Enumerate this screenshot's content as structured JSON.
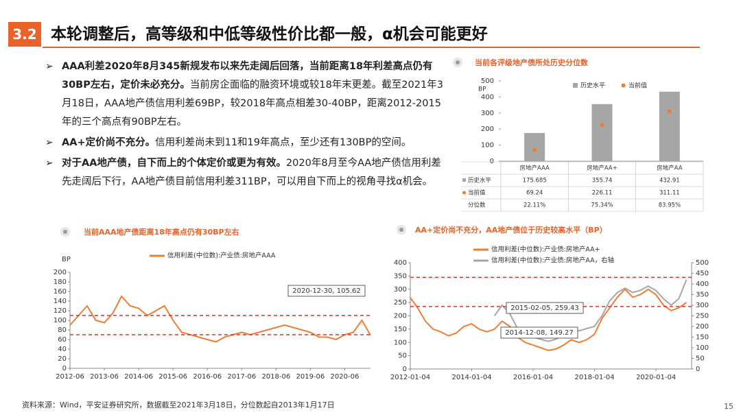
{
  "header": {
    "number": "3.2",
    "title": "本轮调整后，高等级和中低等级性价比都一般，α机会可能更好"
  },
  "bullets": [
    {
      "bold": "AAA利差2020年8月345新规发布以来先走阔后回落，当前距离18年利差高点仍有30BP左右，定价未必充分。",
      "text": "当前房企面临的融资环境或较18年末更差。截至2021年3月18日，AAA地产债信用利差69BP，较2018年高点相差30-40BP，距离2012-2015年的三个高点有90BP左右。"
    },
    {
      "bold": "AA+定价尚不充分。",
      "text": "信用利差尚未到11和19年高点，至少还有130BP的空间。"
    },
    {
      "bold": "对于AA地产债，自下而上的个体定价或更为有效。",
      "text": "2020年8月至今AA地产债信用利差先走阔后下行，AA地产债目前信用利差311BP，可以用自下而上的视角寻找α机会。"
    }
  ],
  "chart_data": [
    {
      "type": "bar",
      "title": "当前各评级地产债所处历史分位数",
      "ylabel": "BP",
      "categories": [
        "房地产AAA",
        "房地产AA+",
        "房地产AA"
      ],
      "series": [
        {
          "name": "历史水平",
          "color": "#a6a6a6",
          "marker": "bar",
          "values": [
            175.685,
            355.74,
            432.91
          ]
        },
        {
          "name": "当前值",
          "color": "#ed7d31",
          "marker": "dot",
          "values": [
            69.24,
            226.11,
            311.11
          ]
        }
      ],
      "table_row": {
        "name": "分位数",
        "values": [
          22.11,
          75.34,
          83.95
        ],
        "value_labels": [
          "22.11%",
          "75.34%",
          "83.95%"
        ]
      },
      "ylim": [
        0,
        500
      ],
      "yticks": [
        0,
        100,
        200,
        300,
        400,
        500
      ],
      "grid": false
    },
    {
      "type": "line",
      "title": "当前AAA地产债距离18年高点仍有30BP左右",
      "ylabel": "BP",
      "x": [
        "2012-06",
        "2012-09",
        "2012-12",
        "2013-03",
        "2013-06",
        "2013-09",
        "2013-12",
        "2014-03",
        "2014-06",
        "2014-09",
        "2014-12",
        "2015-03",
        "2015-06",
        "2015-09",
        "2015-12",
        "2016-03",
        "2016-06",
        "2016-09",
        "2016-12",
        "2017-03",
        "2017-06",
        "2017-09",
        "2017-12",
        "2018-03",
        "2018-06",
        "2018-09",
        "2018-12",
        "2019-03",
        "2019-06",
        "2019-09",
        "2019-12",
        "2020-03",
        "2020-06",
        "2020-09",
        "2020-12",
        "2021-03"
      ],
      "series": [
        {
          "name": "信用利差(中位数):产业债:房地产AAA",
          "color": "#ed7d31",
          "values": [
            90,
            110,
            130,
            100,
            95,
            115,
            150,
            130,
            125,
            110,
            120,
            130,
            100,
            75,
            70,
            65,
            60,
            55,
            65,
            70,
            75,
            70,
            75,
            80,
            85,
            90,
            85,
            80,
            75,
            65,
            65,
            60,
            70,
            75,
            100,
            69
          ]
        }
      ],
      "ref_lines": [
        110,
        70
      ],
      "ref_color": "#d9302b",
      "annotations": [
        "2020-12-30, 105.62"
      ],
      "xlim": [
        "2012-06",
        "2021-03"
      ],
      "xticks": [
        "2012-06",
        "2013-06",
        "2014-06",
        "2015-06",
        "2016-06",
        "2017-06",
        "2018-06",
        "2019-06",
        "2020-06"
      ],
      "ylim": [
        0,
        200
      ],
      "yticks": [
        0,
        20,
        40,
        60,
        80,
        100,
        120,
        140,
        160,
        180,
        200
      ],
      "grid": false
    },
    {
      "type": "line",
      "title": "AA+定价尚不充分，AA地产债位于历史较高水平（BP）",
      "x": [
        "2012-01",
        "2012-04",
        "2012-07",
        "2012-10",
        "2013-01",
        "2013-04",
        "2013-07",
        "2013-10",
        "2014-01",
        "2014-04",
        "2014-07",
        "2014-10",
        "2015-01",
        "2015-04",
        "2015-07",
        "2015-10",
        "2016-01",
        "2016-04",
        "2016-07",
        "2016-10",
        "2017-01",
        "2017-04",
        "2017-07",
        "2017-10",
        "2018-01",
        "2018-04",
        "2018-07",
        "2018-10",
        "2019-01",
        "2019-04",
        "2019-07",
        "2019-10",
        "2020-01",
        "2020-04",
        "2020-07",
        "2020-10",
        "2021-01"
      ],
      "series": [
        {
          "name": "信用利差(中位数):产业债:房地产AA+",
          "color": "#ed7d31",
          "values": [
            270,
            230,
            180,
            150,
            140,
            125,
            135,
            160,
            170,
            150,
            140,
            150,
            180,
            160,
            120,
            100,
            90,
            80,
            70,
            75,
            90,
            110,
            100,
            110,
            130,
            190,
            230,
            270,
            300,
            270,
            280,
            300,
            280,
            240,
            220,
            230,
            250
          ]
        },
        {
          "name": "信用利差(中位数):产业债:房地产AA，右轴",
          "color": "#a6a6a6",
          "axis": "y2",
          "values": [
            null,
            null,
            null,
            null,
            null,
            null,
            null,
            null,
            null,
            null,
            null,
            250,
            300,
            260,
            190,
            160,
            150,
            140,
            130,
            140,
            160,
            170,
            180,
            190,
            200,
            250,
            320,
            360,
            380,
            360,
            370,
            390,
            370,
            330,
            300,
            330,
            420
          ]
        }
      ],
      "ref_lines": [
        345,
        235
      ],
      "ref_color": "#d9302b",
      "annotations": [
        "2015-02-05, 259.43",
        "2014-12-08, 149.27"
      ],
      "xlim": [
        "2012-01-04",
        "2021-03"
      ],
      "xticks": [
        "2012-01-04",
        "2014-01-04",
        "2016-01-04",
        "2018-01-04",
        "2020-01-04"
      ],
      "ylim": [
        0,
        400
      ],
      "yticks": [
        0,
        50,
        100,
        150,
        200,
        250,
        300,
        350,
        400
      ],
      "y2lim": [
        0,
        500
      ],
      "y2ticks": [
        0,
        50,
        100,
        150,
        200,
        250,
        300,
        350,
        400,
        450,
        500
      ],
      "grid": false
    }
  ],
  "source": "资料来源：Wind，平安证券研究所，数据截至2021年3月18日，分位数起自2013年1月17日",
  "page_number": "15"
}
